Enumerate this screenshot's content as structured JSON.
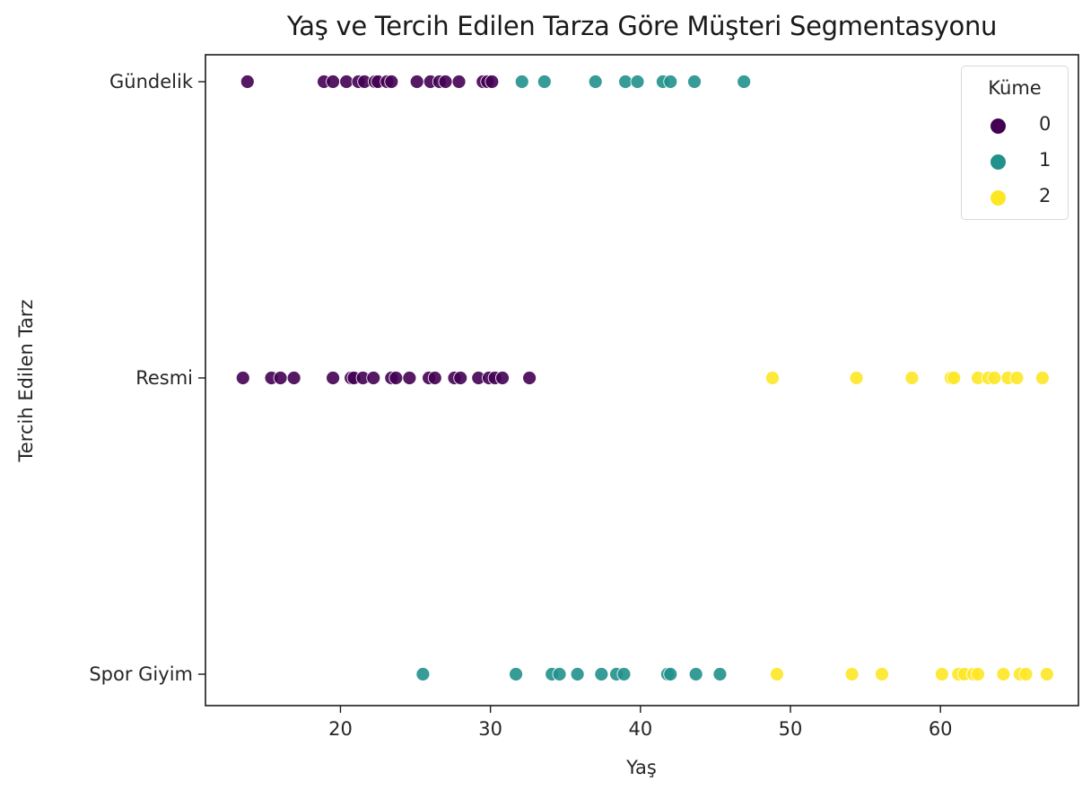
{
  "chart_data": {
    "type": "scatter",
    "title": "Yaş ve Tercih Edilen Tarza Göre Müşteri Segmentasyonu",
    "xlabel": "Yaş",
    "ylabel": "Tercih Edilen Tarz",
    "xlim": [
      11.0,
      69.2
    ],
    "x_ticks": [
      20,
      30,
      40,
      50,
      60
    ],
    "y_categories": [
      "Gündelik",
      "Resmi",
      "Spor Giyim"
    ],
    "grid": false,
    "legend": {
      "title": "Küme",
      "position": "upper right",
      "entries": [
        {
          "label": "0",
          "color": "#440154"
        },
        {
          "label": "1",
          "color": "#21918c"
        },
        {
          "label": "2",
          "color": "#fde725"
        }
      ]
    },
    "series": [
      {
        "name": "0",
        "color": "#440154",
        "points": [
          {
            "y": "Gündelik",
            "x": [
              13.8,
              18.9,
              19.5,
              20.4,
              21.2,
              21.6,
              22.3,
              22.5,
              23.1,
              23.4,
              25.1,
              26.0,
              26.6,
              27.0,
              27.9,
              29.5,
              29.8,
              30.1
            ]
          },
          {
            "y": "Resmi",
            "x": [
              13.5,
              15.4,
              16.0,
              16.9,
              19.5,
              20.7,
              20.9,
              21.5,
              22.2,
              23.4,
              23.7,
              24.6,
              25.9,
              26.3,
              27.6,
              28.0,
              29.2,
              29.9,
              30.3,
              30.8,
              32.6
            ]
          }
        ]
      },
      {
        "name": "1",
        "color": "#21918c",
        "points": [
          {
            "y": "Gündelik",
            "x": [
              32.1,
              33.6,
              37.0,
              39.0,
              39.8,
              41.5,
              42.0,
              43.6,
              46.9
            ]
          },
          {
            "y": "Spor Giyim",
            "x": [
              25.5,
              31.7,
              34.1,
              34.6,
              35.8,
              37.4,
              38.4,
              38.9,
              41.8,
              42.0,
              43.7,
              45.3
            ]
          }
        ]
      },
      {
        "name": "2",
        "color": "#fde725",
        "points": [
          {
            "y": "Resmi",
            "x": [
              48.8,
              54.4,
              58.1,
              60.7,
              60.9,
              62.5,
              63.2,
              63.6,
              64.5,
              65.1,
              66.8
            ]
          },
          {
            "y": "Spor Giyim",
            "x": [
              49.1,
              54.1,
              56.1,
              60.1,
              61.2,
              61.6,
              62.2,
              62.5,
              64.2,
              65.3,
              65.7,
              67.1
            ]
          }
        ]
      }
    ]
  }
}
